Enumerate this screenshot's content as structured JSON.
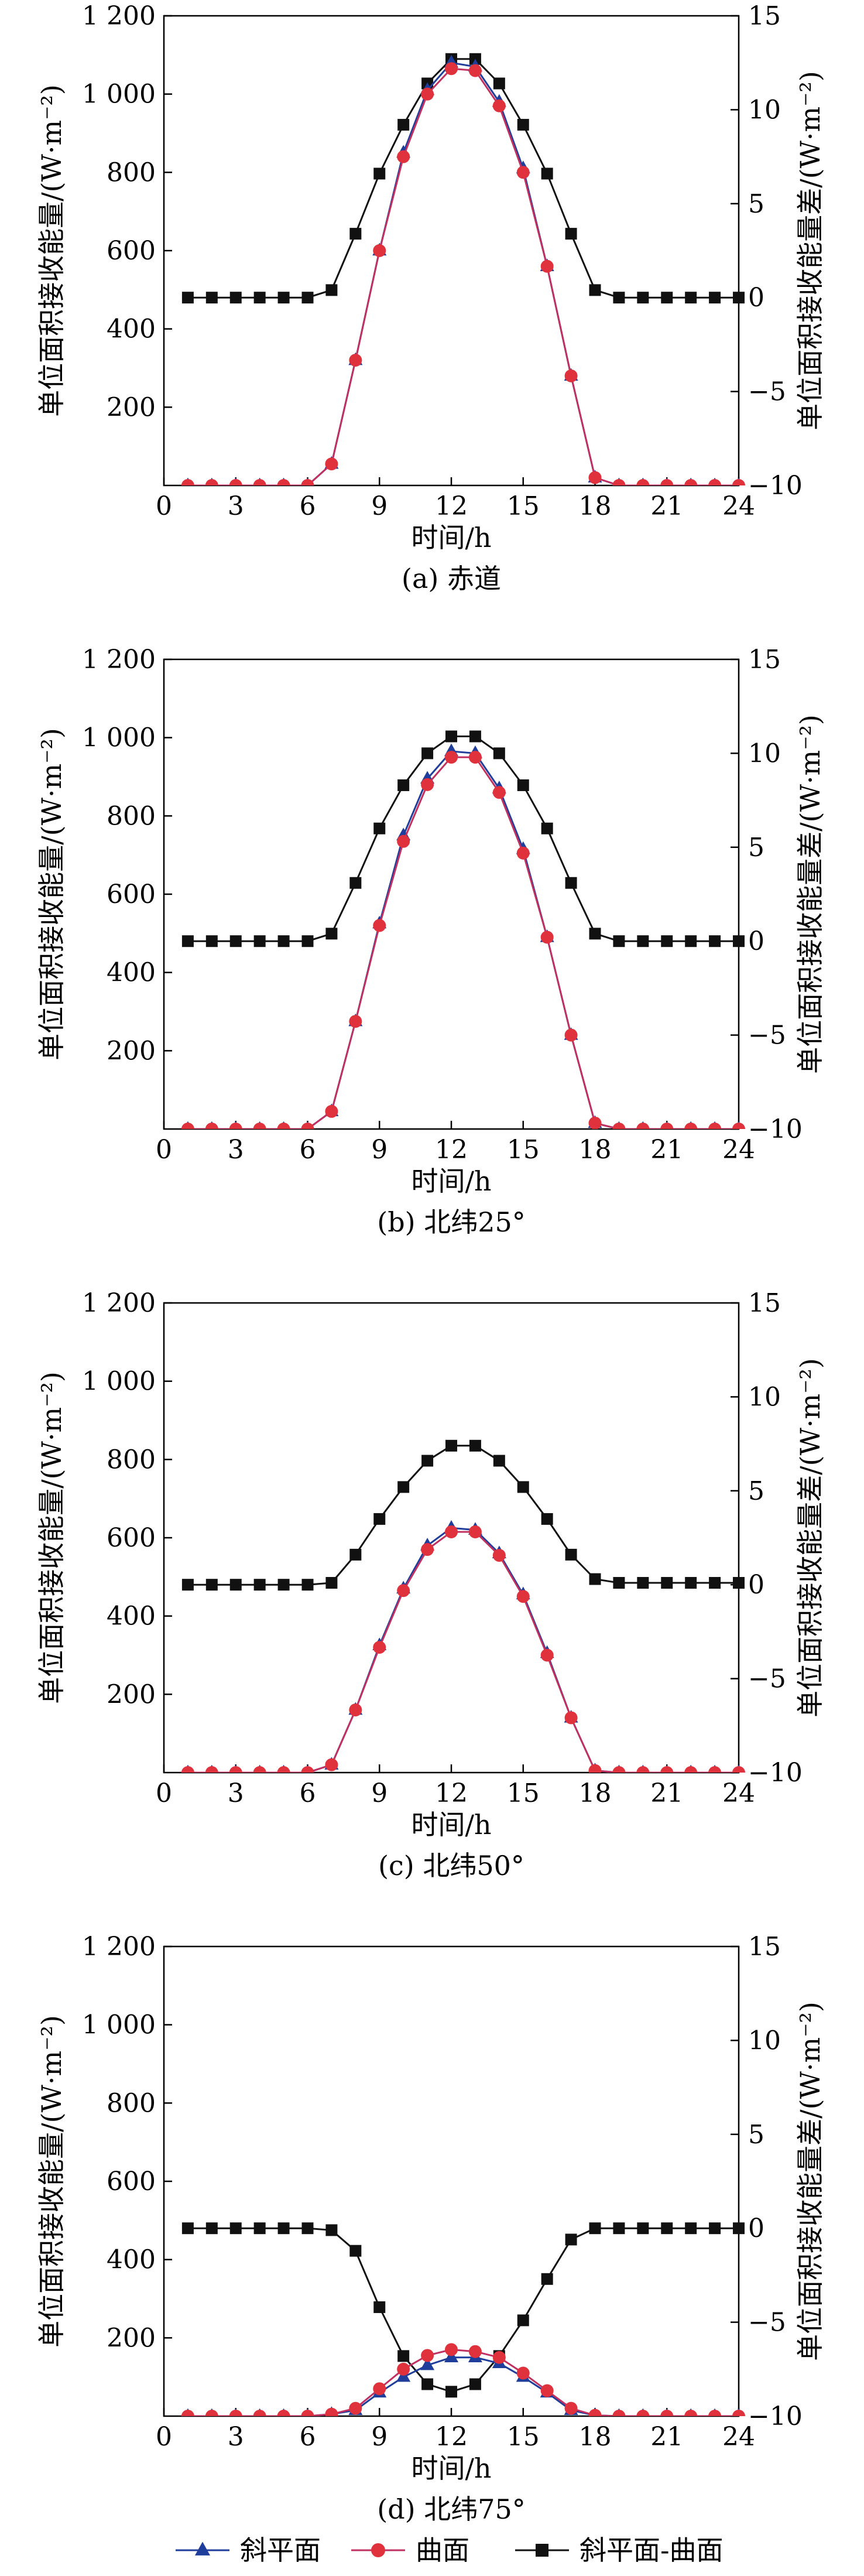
{
  "figure": {
    "legend": [
      "斜平面",
      "曲面",
      "斜平面-曲面"
    ],
    "colors": {
      "inclined": "#1f3d9a",
      "curved": "#e0323c",
      "difference": "#111111",
      "curved_line": "#c03060"
    }
  },
  "chart_data": [
    {
      "type": "line",
      "caption": "(a) 赤道",
      "xlabel": "时间/h",
      "ylabel_left": "单位面积接收能量/(W·m⁻²)",
      "ylabel_right": "单位面积接收能量差/(W·m⁻²)",
      "xlim": [
        0,
        24
      ],
      "ylim_left": [
        0,
        1200
      ],
      "ylim_right": [
        -10,
        15
      ],
      "xticks": [
        0,
        3,
        6,
        9,
        12,
        15,
        18,
        21,
        24
      ],
      "xtick_labels": [
        "0",
        "3",
        "6",
        "9",
        "12",
        "15",
        "18",
        "21",
        "24"
      ],
      "yticks_left": [
        200,
        400,
        600,
        800,
        1000,
        1200
      ],
      "ytick_labels_left": [
        "200",
        "400",
        "600",
        "800",
        "1 000",
        "1 200"
      ],
      "yticks_right": [
        -10,
        -5,
        0,
        5,
        10,
        15
      ],
      "ytick_labels_right": [
        "−10",
        "−5",
        "0",
        "5",
        "10",
        "15"
      ],
      "x": [
        1,
        2,
        3,
        4,
        5,
        6,
        7,
        8,
        9,
        10,
        11,
        12,
        13,
        14,
        15,
        16,
        17,
        18,
        19,
        20,
        21,
        22,
        23,
        24
      ],
      "series": [
        {
          "name": "斜平面",
          "axis": "left",
          "values": [
            0,
            0,
            0,
            0,
            0,
            0,
            55,
            320,
            600,
            850,
            1010,
            1080,
            1070,
            980,
            810,
            560,
            280,
            20,
            0,
            0,
            0,
            0,
            0,
            0
          ]
        },
        {
          "name": "曲面",
          "axis": "left",
          "values": [
            0,
            0,
            0,
            0,
            0,
            0,
            55,
            320,
            600,
            840,
            1000,
            1065,
            1060,
            970,
            800,
            560,
            280,
            20,
            0,
            0,
            0,
            0,
            0,
            0
          ]
        },
        {
          "name": "斜平面-曲面",
          "axis": "right",
          "values": [
            0,
            0,
            0,
            0,
            0,
            0,
            0.4,
            3.4,
            6.6,
            9.2,
            11.4,
            12.7,
            12.7,
            11.4,
            9.2,
            6.6,
            3.4,
            0.4,
            0,
            0,
            0,
            0,
            0,
            0
          ]
        }
      ]
    },
    {
      "type": "line",
      "caption": "(b) 北纬25°",
      "xlabel": "时间/h",
      "ylabel_left": "单位面积接收能量/(W·m⁻²)",
      "ylabel_right": "单位面积接收能量差/(W·m⁻²)",
      "xlim": [
        0,
        24
      ],
      "ylim_left": [
        0,
        1200
      ],
      "ylim_right": [
        -10,
        15
      ],
      "xticks": [
        0,
        3,
        6,
        9,
        12,
        15,
        18,
        21,
        24
      ],
      "xtick_labels": [
        "0",
        "3",
        "6",
        "9",
        "12",
        "15",
        "18",
        "21",
        "24"
      ],
      "yticks_left": [
        200,
        400,
        600,
        800,
        1000,
        1200
      ],
      "ytick_labels_left": [
        "200",
        "400",
        "600",
        "800",
        "1 000",
        "1 200"
      ],
      "yticks_right": [
        -10,
        -5,
        0,
        5,
        10,
        15
      ],
      "ytick_labels_right": [
        "−10",
        "−5",
        "0",
        "5",
        "10",
        "15"
      ],
      "x": [
        1,
        2,
        3,
        4,
        5,
        6,
        7,
        8,
        9,
        10,
        11,
        12,
        13,
        14,
        15,
        16,
        17,
        18,
        19,
        20,
        21,
        22,
        23,
        24
      ],
      "series": [
        {
          "name": "斜平面",
          "axis": "left",
          "values": [
            0,
            0,
            0,
            0,
            0,
            0,
            45,
            275,
            525,
            750,
            895,
            965,
            960,
            870,
            715,
            490,
            240,
            15,
            0,
            0,
            0,
            0,
            0,
            0
          ]
        },
        {
          "name": "曲面",
          "axis": "left",
          "values": [
            0,
            0,
            0,
            0,
            0,
            0,
            45,
            275,
            520,
            735,
            880,
            950,
            950,
            860,
            705,
            490,
            240,
            15,
            0,
            0,
            0,
            0,
            0,
            0
          ]
        },
        {
          "name": "斜平面-曲面",
          "axis": "right",
          "values": [
            0,
            0,
            0,
            0,
            0,
            0,
            0.4,
            3.1,
            6.0,
            8.3,
            10.0,
            10.9,
            10.9,
            10.0,
            8.3,
            6.0,
            3.1,
            0.4,
            0,
            0,
            0,
            0,
            0,
            0
          ]
        }
      ]
    },
    {
      "type": "line",
      "caption": "(c) 北纬50°",
      "xlabel": "时间/h",
      "ylabel_left": "单位面积接收能量/(W·m⁻²)",
      "ylabel_right": "单位面积接收能量差/(W·m⁻²)",
      "xlim": [
        0,
        24
      ],
      "ylim_left": [
        0,
        1200
      ],
      "ylim_right": [
        -10,
        15
      ],
      "xticks": [
        0,
        3,
        6,
        9,
        12,
        15,
        18,
        21,
        24
      ],
      "xtick_labels": [
        "0",
        "3",
        "6",
        "9",
        "12",
        "15",
        "18",
        "21",
        "24"
      ],
      "yticks_left": [
        200,
        400,
        600,
        800,
        1000,
        1200
      ],
      "ytick_labels_left": [
        "200",
        "400",
        "600",
        "800",
        "1 000",
        "1 200"
      ],
      "yticks_right": [
        -10,
        -5,
        0,
        5,
        10,
        15
      ],
      "ytick_labels_right": [
        "−10",
        "−5",
        "0",
        "5",
        "10",
        "15"
      ],
      "x": [
        1,
        2,
        3,
        4,
        5,
        6,
        7,
        8,
        9,
        10,
        11,
        12,
        13,
        14,
        15,
        16,
        17,
        18,
        19,
        20,
        21,
        22,
        23,
        24
      ],
      "series": [
        {
          "name": "斜平面",
          "axis": "left",
          "values": [
            0,
            0,
            0,
            0,
            0,
            0,
            20,
            160,
            325,
            470,
            580,
            625,
            620,
            560,
            455,
            305,
            140,
            5,
            0,
            0,
            0,
            0,
            0,
            0
          ]
        },
        {
          "name": "曲面",
          "axis": "left",
          "values": [
            0,
            0,
            0,
            0,
            0,
            0,
            20,
            160,
            320,
            465,
            570,
            615,
            615,
            555,
            450,
            300,
            140,
            5,
            0,
            0,
            0,
            0,
            0,
            0
          ]
        },
        {
          "name": "斜平面-曲面",
          "axis": "right",
          "values": [
            0,
            0,
            0,
            0,
            0,
            0,
            0.1,
            1.6,
            3.5,
            5.2,
            6.6,
            7.4,
            7.4,
            6.6,
            5.2,
            3.5,
            1.6,
            0.3,
            0.1,
            0.1,
            0.1,
            0.1,
            0.1,
            0.1
          ]
        }
      ]
    },
    {
      "type": "line",
      "caption": "(d) 北纬75°",
      "xlabel": "时间/h",
      "ylabel_left": "单位面积接收能量/(W·m⁻²)",
      "ylabel_right": "单位面积接收能量差/(W·m⁻²)",
      "xlim": [
        0,
        24
      ],
      "ylim_left": [
        0,
        1200
      ],
      "ylim_right": [
        -10,
        15
      ],
      "xticks": [
        0,
        3,
        6,
        9,
        12,
        15,
        18,
        21,
        24
      ],
      "xtick_labels": [
        "0",
        "3",
        "6",
        "9",
        "12",
        "15",
        "18",
        "21",
        "24"
      ],
      "yticks_left": [
        200,
        400,
        600,
        800,
        1000,
        1200
      ],
      "ytick_labels_left": [
        "200",
        "400",
        "600",
        "800",
        "1 000",
        "1 200"
      ],
      "yticks_right": [
        -10,
        -5,
        0,
        5,
        10,
        15
      ],
      "ytick_labels_right": [
        "−10",
        "−5",
        "0",
        "5",
        "10",
        "15"
      ],
      "x": [
        1,
        2,
        3,
        4,
        5,
        6,
        7,
        8,
        9,
        10,
        11,
        12,
        13,
        14,
        15,
        16,
        17,
        18,
        19,
        20,
        21,
        22,
        23,
        24
      ],
      "series": [
        {
          "name": "斜平面",
          "axis": "left",
          "values": [
            0,
            0,
            0,
            0,
            0,
            0,
            5,
            15,
            60,
            100,
            130,
            150,
            150,
            135,
            100,
            60,
            15,
            2,
            0,
            0,
            0,
            0,
            0,
            0
          ]
        },
        {
          "name": "曲面",
          "axis": "left",
          "values": [
            0,
            0,
            0,
            0,
            0,
            0,
            5,
            20,
            70,
            120,
            155,
            170,
            165,
            150,
            110,
            65,
            20,
            2,
            0,
            0,
            0,
            0,
            0,
            0
          ]
        },
        {
          "name": "斜平面-曲面",
          "axis": "right",
          "values": [
            0,
            0,
            0,
            0,
            0,
            0,
            -0.1,
            -1.2,
            -4.2,
            -6.8,
            -8.3,
            -8.7,
            -8.3,
            -6.8,
            -4.9,
            -2.7,
            -0.6,
            0,
            0,
            0,
            0,
            0,
            0,
            0
          ]
        }
      ]
    }
  ]
}
